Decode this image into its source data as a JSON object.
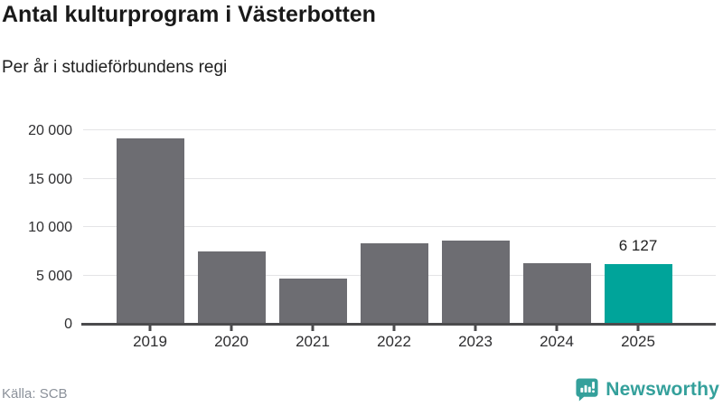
{
  "header": {
    "title": "Antal kulturprogram i Västerbotten",
    "subtitle": "Per år i studieförbundens regi"
  },
  "chart_data": {
    "type": "bar",
    "title": "Antal kulturprogram i Västerbotten",
    "subtitle": "Per år i studieförbundens regi",
    "categories": [
      "2019",
      "2020",
      "2021",
      "2022",
      "2023",
      "2024",
      "2025"
    ],
    "values": [
      19200,
      7500,
      4650,
      8350,
      8600,
      6250,
      6127
    ],
    "highlight_index": 6,
    "value_labels": [
      {
        "index": 6,
        "text": "6 127"
      }
    ],
    "yticks": [
      {
        "value": 0,
        "label": "0"
      },
      {
        "value": 5000,
        "label": "5 000"
      },
      {
        "value": 10000,
        "label": "10 000"
      },
      {
        "value": 15000,
        "label": "15 000"
      },
      {
        "value": 20000,
        "label": "20 000"
      }
    ],
    "ylim": [
      0,
      20000
    ],
    "xlabel": "",
    "ylabel": "",
    "grid": true,
    "legend": false,
    "bar_color": "#6d6d72",
    "highlight_color": "#00a49a"
  },
  "footer": {
    "source": "Källa: SCB",
    "brand": "Newsworthy",
    "brand_color": "#34a09b",
    "logo_icon": "newsworthy-bubble-chart-icon"
  }
}
